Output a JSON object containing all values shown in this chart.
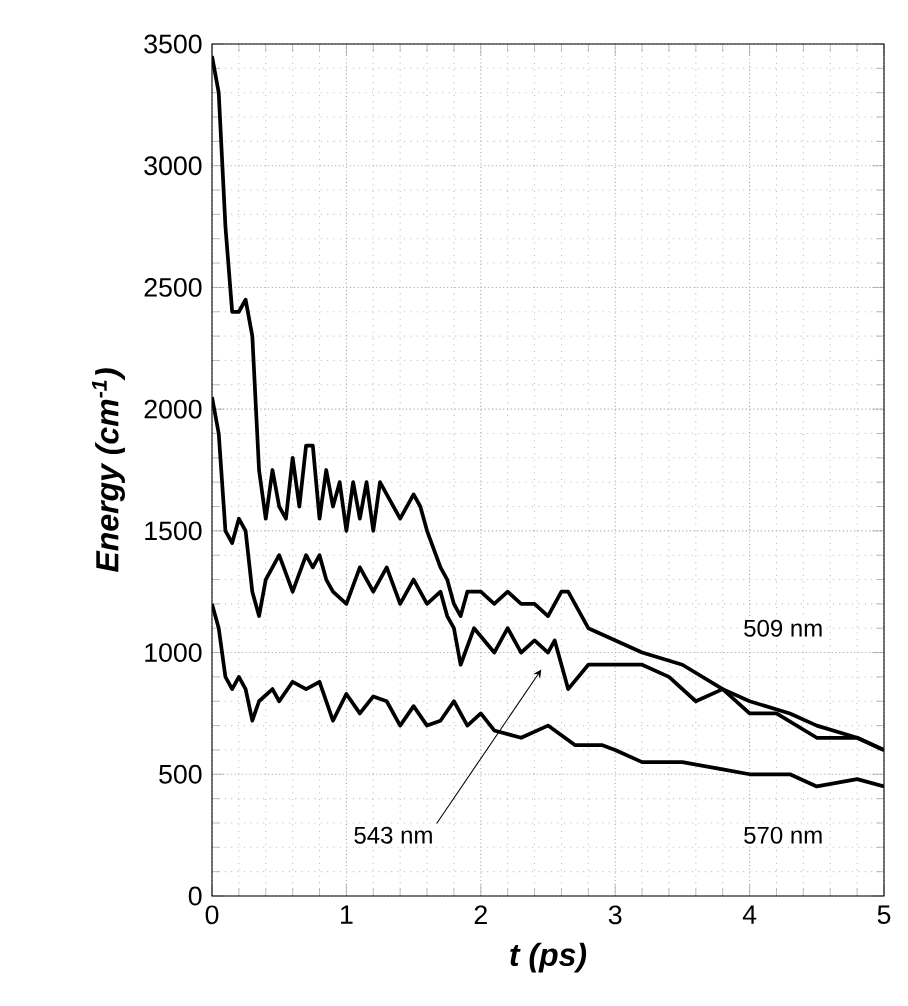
{
  "chart_data": {
    "type": "line",
    "xlabel": "t (ps)",
    "ylabel": "Energy (cm$^{-1}$)",
    "xlim": [
      0,
      5
    ],
    "ylim": [
      0,
      3500
    ],
    "xticks": [
      0,
      1,
      2,
      3,
      4,
      5
    ],
    "yticks": [
      0,
      500,
      1000,
      1500,
      2000,
      2500,
      3000,
      3500
    ],
    "grid": true,
    "legend": false,
    "marker": "none",
    "line_style": "solid",
    "series": [
      {
        "name": "509 nm",
        "color": "#000000",
        "x": [
          0,
          0.05,
          0.1,
          0.15,
          0.2,
          0.25,
          0.3,
          0.35,
          0.4,
          0.45,
          0.5,
          0.55,
          0.6,
          0.65,
          0.7,
          0.75,
          0.8,
          0.85,
          0.9,
          0.95,
          1.0,
          1.05,
          1.1,
          1.15,
          1.2,
          1.25,
          1.3,
          1.4,
          1.5,
          1.55,
          1.6,
          1.7,
          1.75,
          1.8,
          1.85,
          1.9,
          2.0,
          2.1,
          2.2,
          2.3,
          2.4,
          2.5,
          2.6,
          2.65,
          2.8,
          3.0,
          3.2,
          3.5,
          3.8,
          4.0,
          4.3,
          4.5,
          4.8,
          5.0
        ],
        "values": [
          3450,
          3300,
          2750,
          2400,
          2400,
          2450,
          2300,
          1750,
          1550,
          1750,
          1600,
          1550,
          1800,
          1600,
          1850,
          1850,
          1550,
          1750,
          1600,
          1700,
          1500,
          1700,
          1550,
          1700,
          1500,
          1700,
          1650,
          1550,
          1650,
          1600,
          1500,
          1350,
          1300,
          1200,
          1150,
          1250,
          1250,
          1200,
          1250,
          1200,
          1200,
          1150,
          1250,
          1250,
          1100,
          1050,
          1000,
          950,
          850,
          800,
          750,
          700,
          650,
          600
        ]
      },
      {
        "name": "543 nm",
        "color": "#000000",
        "x": [
          0,
          0.05,
          0.1,
          0.15,
          0.2,
          0.25,
          0.3,
          0.35,
          0.4,
          0.5,
          0.6,
          0.7,
          0.75,
          0.8,
          0.85,
          0.9,
          1.0,
          1.1,
          1.2,
          1.3,
          1.4,
          1.5,
          1.6,
          1.7,
          1.75,
          1.8,
          1.85,
          1.95,
          2.1,
          2.2,
          2.3,
          2.4,
          2.5,
          2.55,
          2.65,
          2.8,
          3.0,
          3.2,
          3.4,
          3.6,
          3.8,
          4.0,
          4.2,
          4.5,
          4.8,
          5.0
        ],
        "values": [
          2050,
          1900,
          1500,
          1450,
          1550,
          1500,
          1250,
          1150,
          1300,
          1400,
          1250,
          1400,
          1350,
          1400,
          1300,
          1250,
          1200,
          1350,
          1250,
          1350,
          1200,
          1300,
          1200,
          1250,
          1150,
          1100,
          950,
          1100,
          1000,
          1100,
          1000,
          1050,
          1000,
          1050,
          850,
          950,
          950,
          950,
          900,
          800,
          850,
          750,
          750,
          650,
          650,
          600
        ]
      },
      {
        "name": "570 nm",
        "color": "#000000",
        "x": [
          0,
          0.05,
          0.1,
          0.15,
          0.2,
          0.25,
          0.3,
          0.35,
          0.45,
          0.5,
          0.6,
          0.7,
          0.8,
          0.9,
          1.0,
          1.1,
          1.2,
          1.3,
          1.4,
          1.5,
          1.6,
          1.7,
          1.8,
          1.9,
          2.0,
          2.1,
          2.3,
          2.5,
          2.7,
          2.9,
          3.0,
          3.2,
          3.5,
          3.8,
          4.0,
          4.3,
          4.5,
          4.8,
          5.0
        ],
        "values": [
          1200,
          1100,
          900,
          850,
          900,
          850,
          720,
          800,
          850,
          800,
          880,
          850,
          880,
          720,
          830,
          750,
          820,
          800,
          700,
          780,
          700,
          720,
          800,
          700,
          750,
          680,
          650,
          700,
          620,
          620,
          600,
          550,
          550,
          520,
          500,
          500,
          450,
          480,
          450
        ]
      }
    ]
  }
}
